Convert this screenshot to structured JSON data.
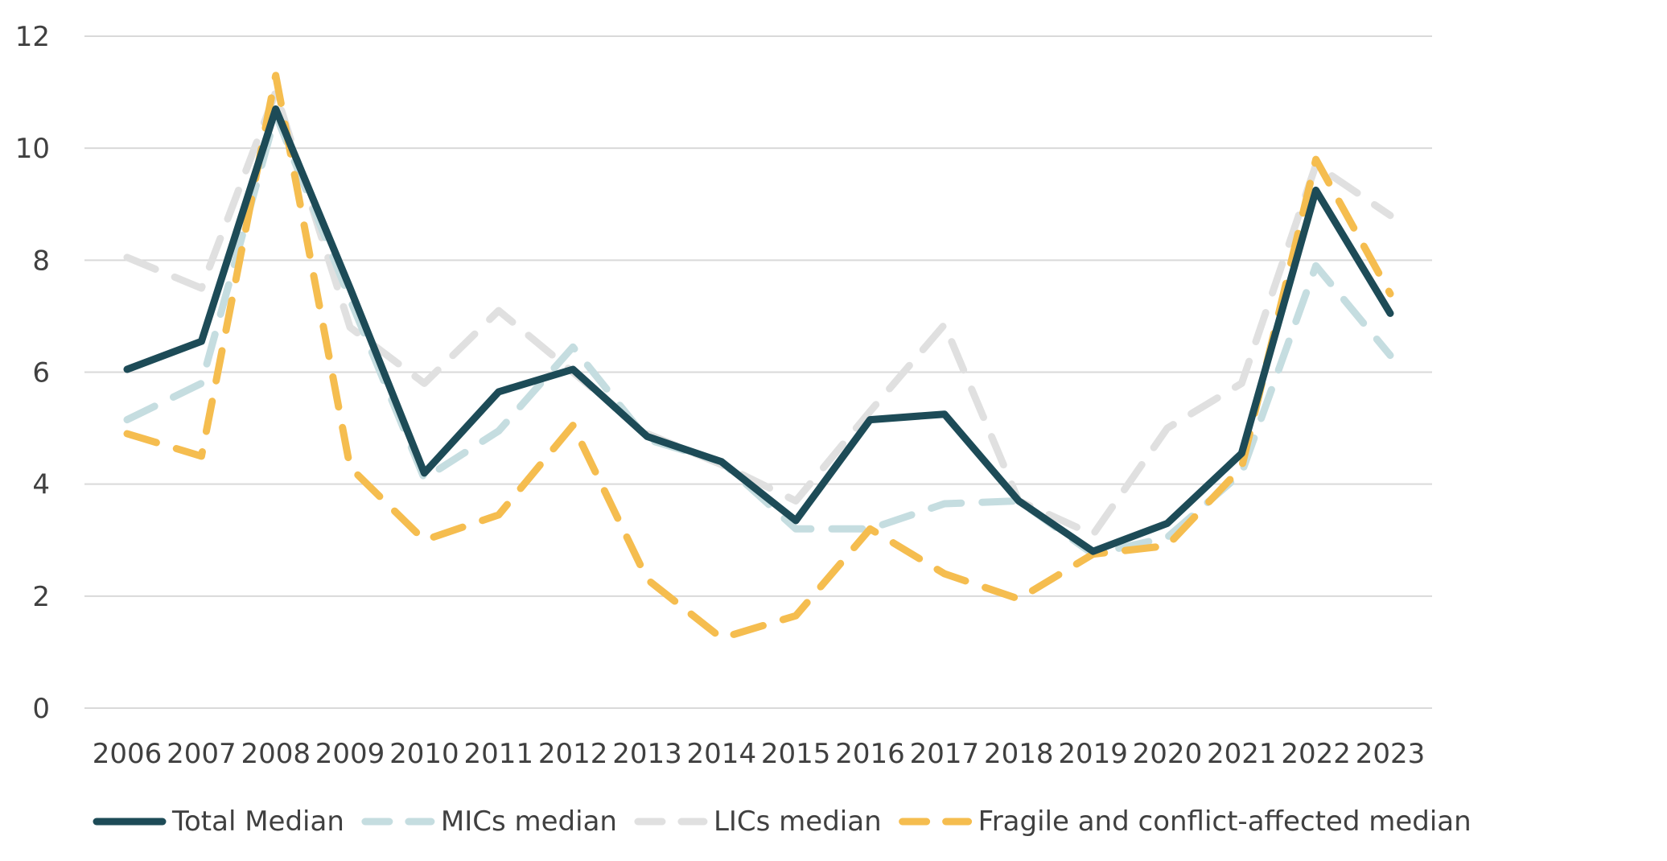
{
  "chart_data": {
    "type": "line",
    "title": "",
    "xlabel": "",
    "ylabel": "",
    "ylim": [
      0,
      12
    ],
    "yticks": [
      0,
      2,
      4,
      6,
      8,
      10,
      12
    ],
    "grid": true,
    "legend_position": "bottom",
    "categories": [
      "2006",
      "2007",
      "2008",
      "2009",
      "2010",
      "2011",
      "2012",
      "2013",
      "2014",
      "2015",
      "2016",
      "2017",
      "2018",
      "2019",
      "2020",
      "2021",
      "2022",
      "2023"
    ],
    "series": [
      {
        "key": "lics",
        "name": "LICs median",
        "color": "#e0e0e0",
        "style": "dashed",
        "values": [
          8.05,
          7.5,
          11.0,
          6.8,
          5.8,
          7.1,
          6.0,
          4.9,
          4.35,
          3.7,
          5.3,
          6.85,
          3.7,
          3.1,
          5.0,
          5.8,
          9.7,
          8.8
        ]
      },
      {
        "key": "mics",
        "name": "MICs median",
        "color": "#c5dde0",
        "style": "dashed",
        "values": [
          5.15,
          5.8,
          10.6,
          7.3,
          4.1,
          4.95,
          6.45,
          4.8,
          4.4,
          3.2,
          3.2,
          3.65,
          3.7,
          2.75,
          3.05,
          4.2,
          7.9,
          6.3
        ]
      },
      {
        "key": "fragile",
        "name": "Fragile and conflict-affected median",
        "color": "#f5bd4f",
        "style": "dashed",
        "values": [
          4.9,
          4.5,
          11.3,
          4.3,
          3.0,
          3.45,
          5.05,
          2.3,
          1.25,
          1.65,
          3.2,
          2.4,
          1.95,
          2.75,
          2.9,
          4.3,
          9.8,
          7.4
        ]
      },
      {
        "key": "total",
        "name": "Total Median",
        "color": "#1d4b57",
        "style": "solid",
        "values": [
          6.05,
          6.55,
          10.7,
          7.5,
          4.2,
          5.65,
          6.05,
          4.85,
          4.4,
          3.35,
          5.15,
          5.25,
          3.7,
          2.8,
          3.3,
          4.55,
          9.25,
          7.05
        ]
      }
    ],
    "legend_order": [
      "total",
      "mics",
      "lics",
      "fragile"
    ]
  }
}
